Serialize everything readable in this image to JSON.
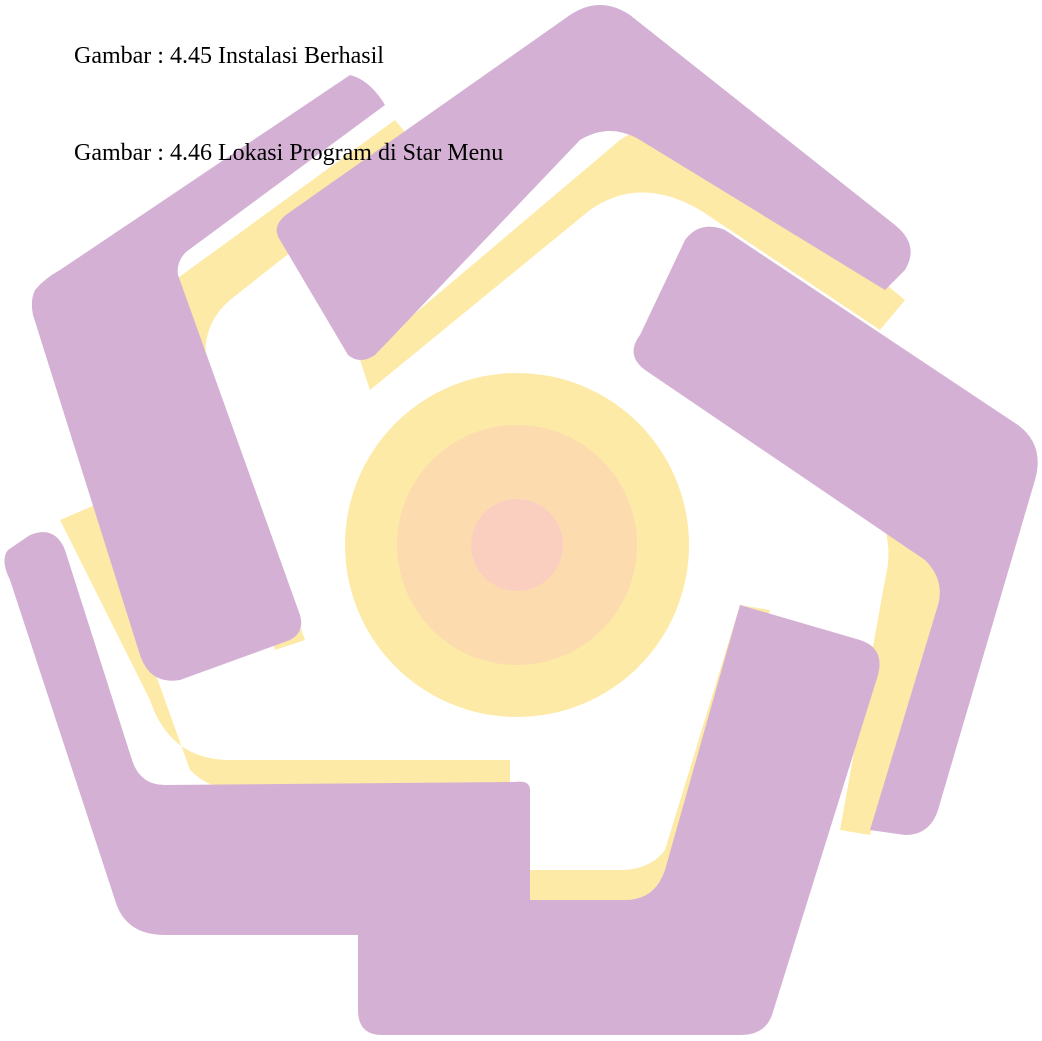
{
  "document": {
    "captions": [
      {
        "text": "Gambar : 4.45 Instalasi Berhasil"
      },
      {
        "text": "Gambar : 4.46 Lokasi Program di Star Menu"
      }
    ]
  },
  "watermark": {
    "icon": "university-star-logo-watermark-icon",
    "colors": {
      "purple": "#d4b1d4",
      "purple_highlight": "#dcaedc",
      "yellow": "#fdeaa6",
      "orange": "#fdd8a6",
      "pink": "#fbcdbc",
      "circle_outer": "#fdeaa6",
      "circle_mid": "#fcdcae",
      "circle_inner": "#fbcfc0"
    }
  }
}
